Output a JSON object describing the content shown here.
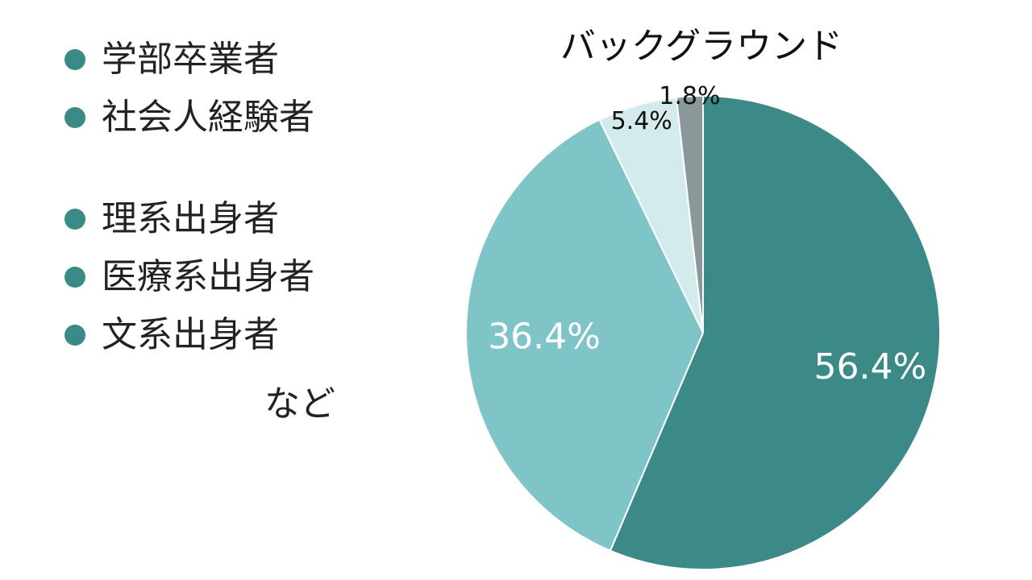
{
  "bullets": [
    {
      "label": "学部卒業者"
    },
    {
      "label": "社会人経験者"
    },
    {
      "label": "理系出身者"
    },
    {
      "label": "医療系出身者"
    },
    {
      "label": "文系出身者"
    }
  ],
  "footnote": "など",
  "colors": {
    "bullet": "#3a8a87",
    "text": "#222222"
  },
  "chart_data": {
    "type": "pie",
    "title": "バックグラウンド",
    "start": "top",
    "direction": "clockwise",
    "slices": [
      {
        "value": 56.4,
        "label": "56.4%",
        "color": "#3c8a88",
        "label_color": "#ffffff"
      },
      {
        "value": 36.4,
        "label": "36.4%",
        "color": "#7fc4c6",
        "label_color": "#ffffff"
      },
      {
        "value": 5.4,
        "label": "5.4%",
        "color": "#d3ebed",
        "label_color": "#111111"
      },
      {
        "value": 1.8,
        "label": "1.8%",
        "color": "#8a9899",
        "label_color": "#111111"
      }
    ]
  }
}
